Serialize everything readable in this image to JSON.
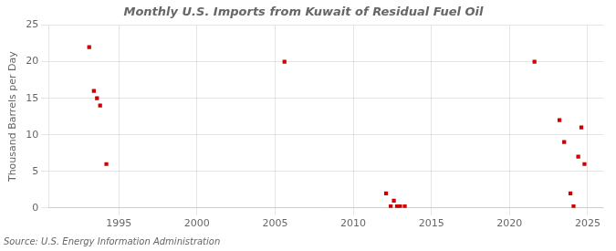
{
  "chart_data": {
    "type": "scatter",
    "title": "Monthly U.S. Imports from Kuwait of Residual Fuel Oil",
    "ylabel": "Thousand Barrels per Day",
    "source": "Source: U.S. Energy Information Administration",
    "x": [
      1993.1,
      1993.4,
      1993.6,
      1993.8,
      1994.2,
      2005.6,
      2012.1,
      2012.4,
      2012.6,
      2012.8,
      2013.0,
      2013.3,
      2021.6,
      2023.2,
      2023.5,
      2023.9,
      2024.1,
      2024.4,
      2024.6,
      2024.8
    ],
    "values": [
      22.0,
      16.0,
      15.0,
      14.0,
      6.0,
      20.0,
      2.0,
      0.2,
      1.0,
      0.2,
      0.2,
      0.2,
      20.0,
      12.0,
      9.0,
      2.0,
      0.2,
      7.0,
      11.0,
      6.0
    ],
    "color": "#cc0000",
    "marker": "square",
    "xlim": [
      1990.5,
      2026
    ],
    "ylim": [
      0,
      25
    ],
    "xticks": [
      1995,
      2000,
      2005,
      2010,
      2015,
      2020,
      2025
    ],
    "yticks": [
      0,
      5,
      10,
      15,
      20,
      25
    ],
    "grid": true
  }
}
